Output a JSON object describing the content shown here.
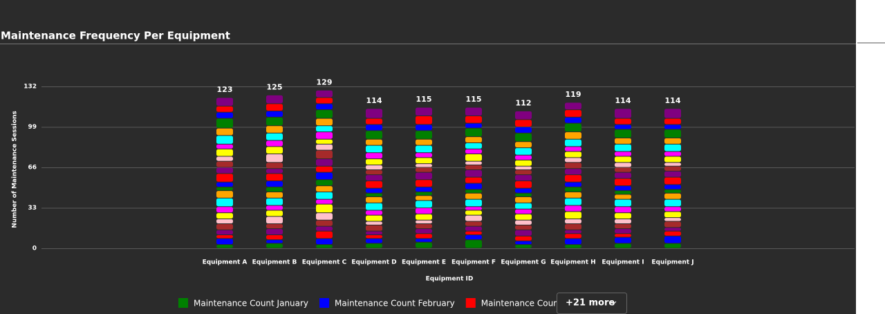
{
  "chart_data": {
    "type": "stacked_bar",
    "title": "Maintenance Frequency Per Equipment",
    "x_label": "Equipment ID",
    "y_label": "Number of Maintenance Sessions",
    "categories": [
      "Equipment A",
      "Equipment B",
      "Equipment C",
      "Equipment D",
      "Equipment E",
      "Equipment F",
      "Equipment G",
      "Equipment H",
      "Equipment I",
      "Equipment J"
    ],
    "totals": [
      123,
      125,
      129,
      114,
      115,
      115,
      112,
      119,
      114,
      114
    ],
    "ylim": [
      0,
      132
    ],
    "yticks": [
      0,
      33,
      66,
      99,
      132
    ],
    "grid": true,
    "legend_more": "+21 more",
    "series": [
      {
        "name": "Maintenance Count January",
        "color": "#008000",
        "values": [
          3,
          4,
          3,
          4,
          5,
          7,
          3,
          3,
          4,
          4
        ]
      },
      {
        "name": "Maintenance Count February",
        "color": "#0000ff",
        "values": [
          5,
          3,
          5,
          4,
          3,
          4,
          3,
          5,
          5,
          6
        ]
      },
      {
        "name": "Maintenance Count March",
        "color": "#ff0000",
        "values": [
          3,
          4,
          6,
          3,
          4,
          3,
          4,
          4,
          3,
          4
        ]
      },
      {
        "color": "#800080",
        "values": [
          4,
          5,
          4,
          3,
          4,
          4,
          5,
          3,
          4,
          3
        ]
      },
      {
        "color": "#a52a2a",
        "values": [
          5,
          4,
          5,
          5,
          4,
          4,
          4,
          5,
          4,
          5
        ]
      },
      {
        "color": "#ffc0cb",
        "values": [
          4,
          6,
          6,
          3,
          3,
          5,
          4,
          4,
          4,
          3
        ]
      },
      {
        "color": "#ffff00",
        "values": [
          5,
          5,
          7,
          5,
          5,
          4,
          5,
          6,
          5,
          5
        ]
      },
      {
        "color": "#ff00ff",
        "values": [
          5,
          4,
          4,
          4,
          5,
          3,
          4,
          5,
          5,
          4
        ]
      },
      {
        "color": "#00ffff",
        "values": [
          7,
          6,
          6,
          6,
          6,
          6,
          5,
          6,
          6,
          6
        ]
      },
      {
        "color": "#ffa500",
        "values": [
          6,
          5,
          5,
          5,
          4,
          5,
          5,
          5,
          4,
          5
        ]
      },
      {
        "color": "#008000",
        "values": [
          3,
          4,
          5,
          3,
          3,
          3,
          3,
          4,
          3,
          3
        ]
      },
      {
        "color": "#0000ff",
        "values": [
          4,
          5,
          6,
          4,
          4,
          5,
          4,
          4,
          4,
          4
        ]
      },
      {
        "color": "#ff0000",
        "values": [
          7,
          6,
          5,
          6,
          6,
          5,
          6,
          6,
          6,
          6
        ]
      },
      {
        "color": "#800080",
        "values": [
          5,
          4,
          6,
          5,
          6,
          6,
          5,
          5,
          5,
          5
        ]
      },
      {
        "color": "#a52a2a",
        "values": [
          5,
          5,
          7,
          4,
          4,
          4,
          4,
          5,
          4,
          4
        ]
      },
      {
        "color": "#ffc0cb",
        "values": [
          4,
          7,
          5,
          4,
          3,
          3,
          3,
          4,
          4,
          3
        ]
      },
      {
        "color": "#ffff00",
        "values": [
          6,
          6,
          4,
          5,
          5,
          6,
          5,
          5,
          5,
          5
        ]
      },
      {
        "color": "#ff00ff",
        "values": [
          4,
          5,
          6,
          5,
          4,
          4,
          4,
          4,
          4,
          4
        ]
      },
      {
        "color": "#00ffff",
        "values": [
          7,
          6,
          5,
          6,
          6,
          5,
          6,
          6,
          6,
          6
        ]
      },
      {
        "color": "#ffa500",
        "values": [
          6,
          6,
          6,
          5,
          5,
          5,
          5,
          6,
          5,
          5
        ]
      },
      {
        "color": "#008000",
        "values": [
          8,
          7,
          7,
          7,
          7,
          7,
          7,
          7,
          7,
          7
        ]
      },
      {
        "color": "#0000ff",
        "values": [
          5,
          5,
          5,
          5,
          5,
          4,
          5,
          5,
          4,
          4
        ]
      },
      {
        "color": "#ff0000",
        "values": [
          5,
          6,
          5,
          5,
          7,
          6,
          6,
          6,
          5,
          5
        ]
      },
      {
        "color": "#800080",
        "values": [
          7,
          7,
          6,
          8,
          7,
          7,
          7,
          6,
          8,
          8
        ]
      }
    ]
  }
}
